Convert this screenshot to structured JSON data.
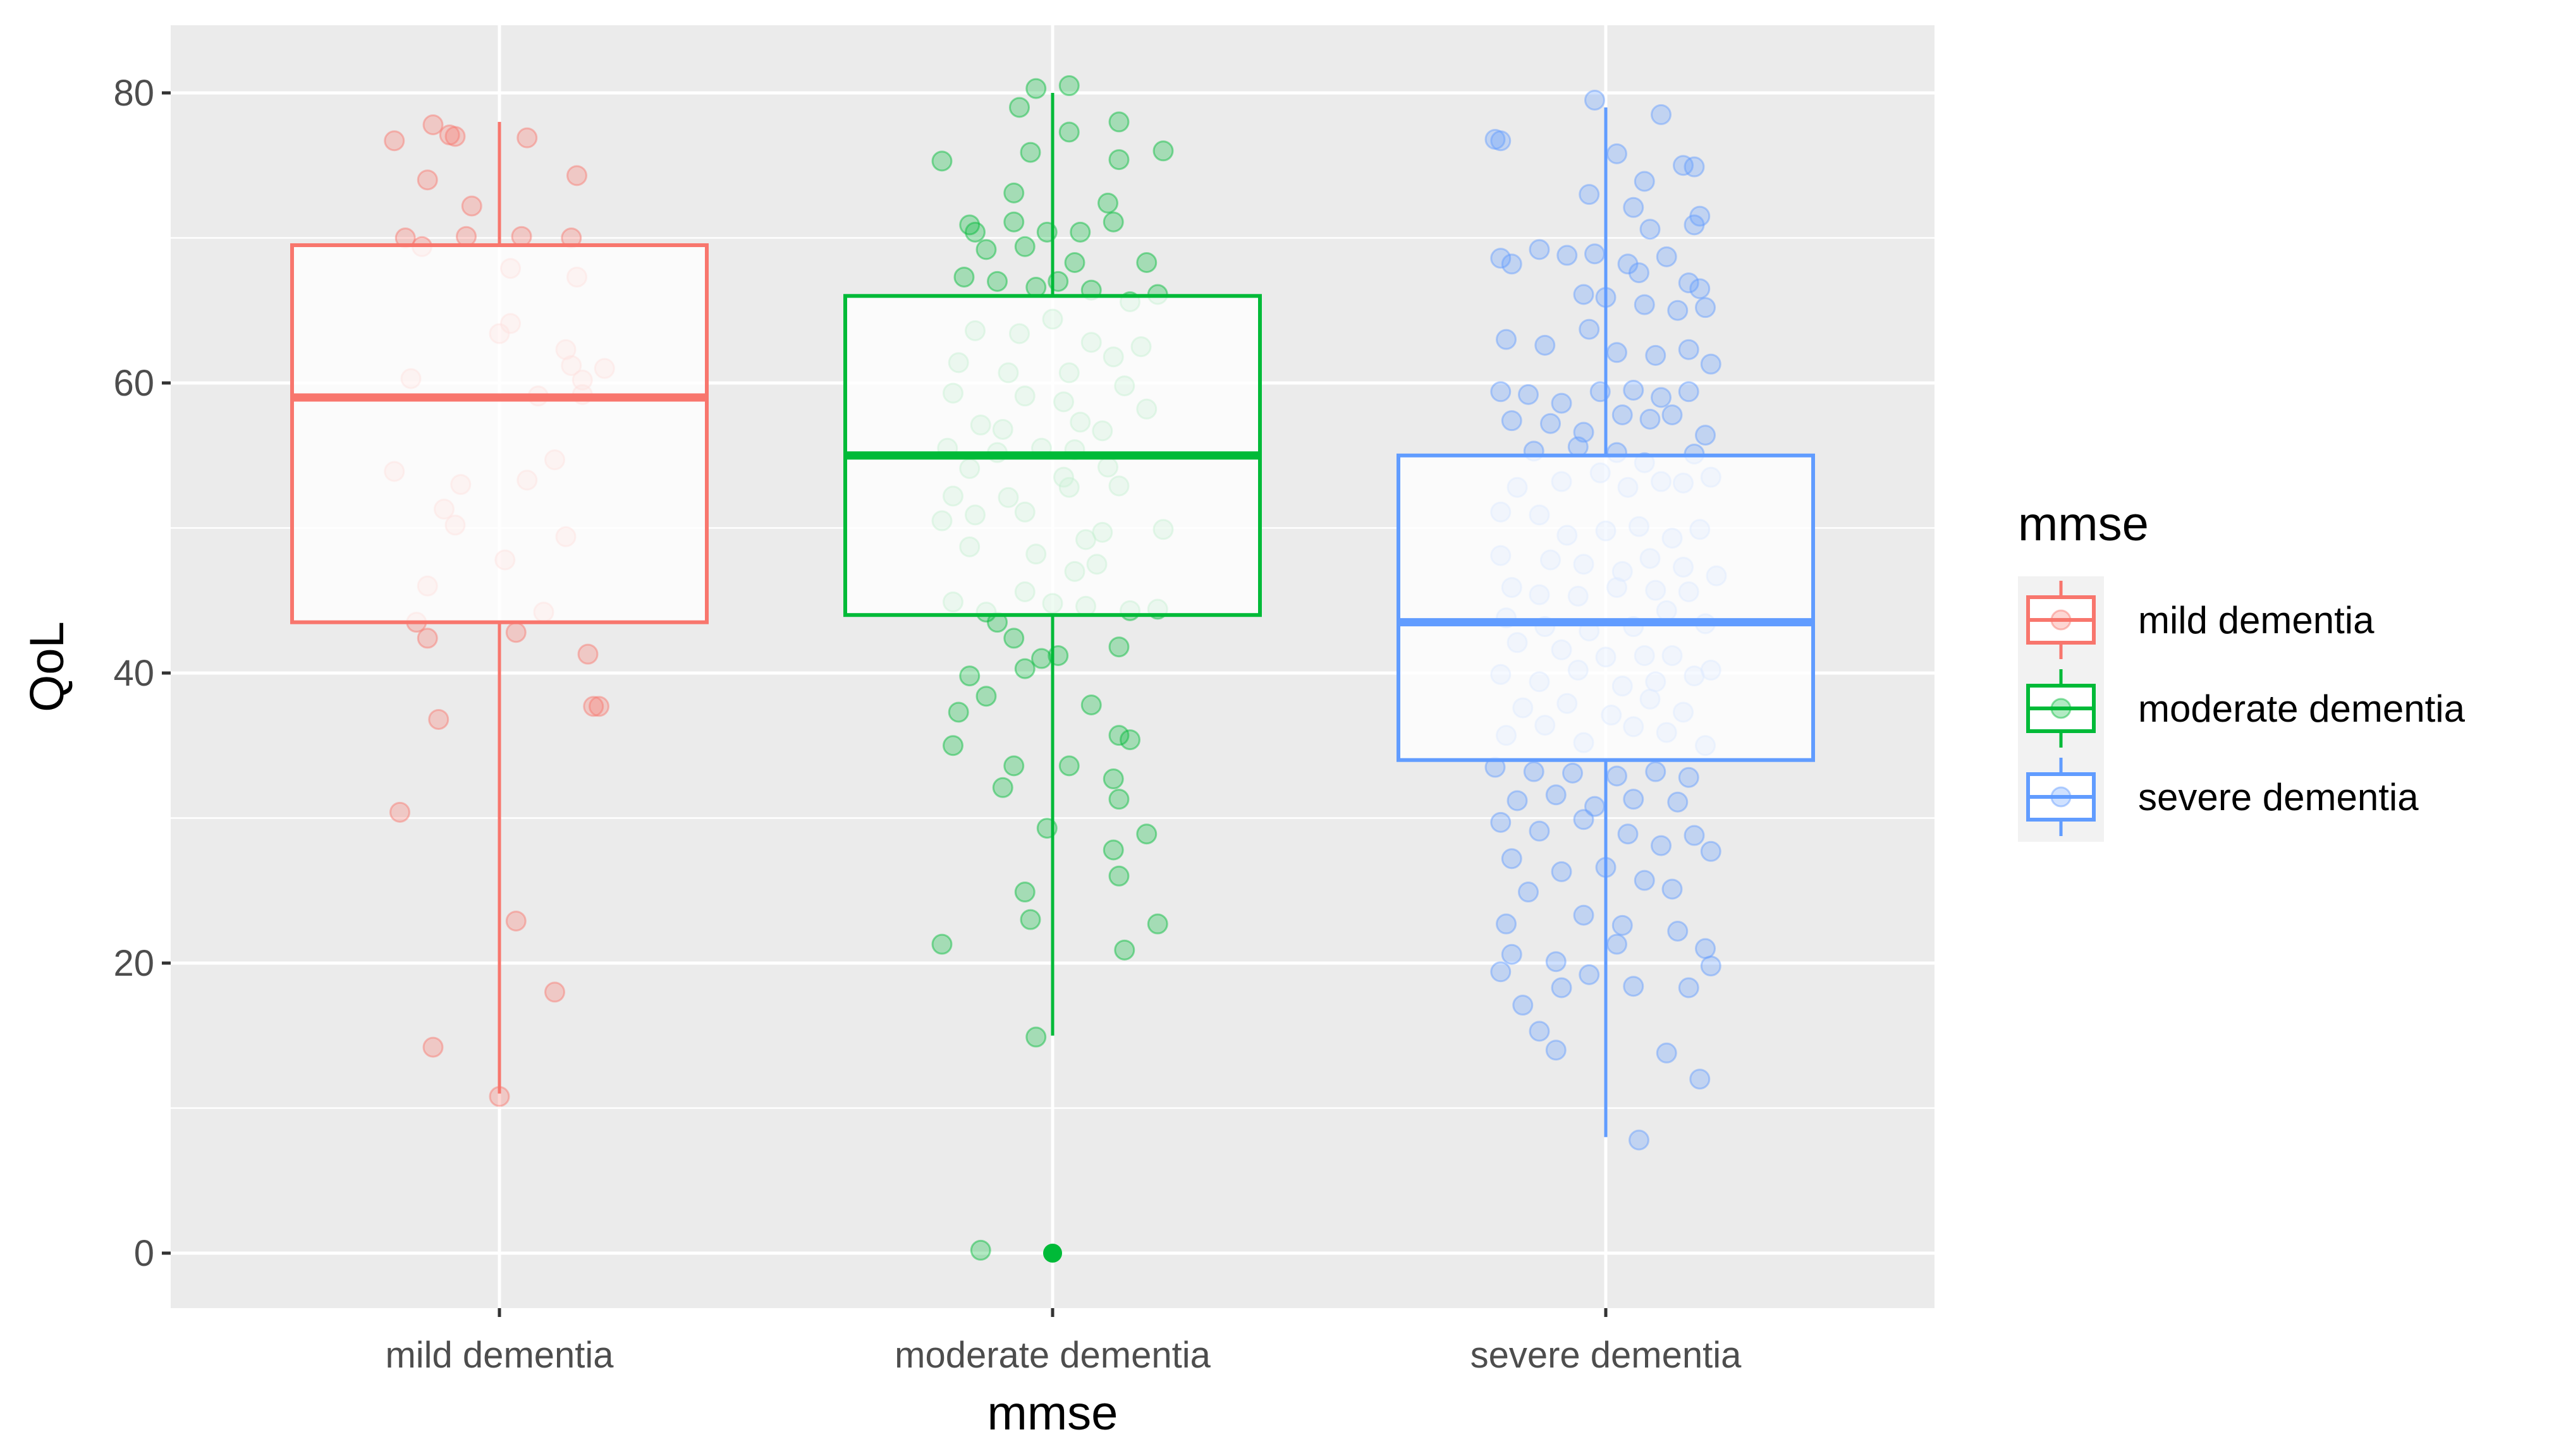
{
  "chart_data": {
    "type": "box",
    "xlabel": "mmse",
    "ylabel": "QoL",
    "ylim": [
      -4,
      84
    ],
    "yticks": [
      0,
      20,
      40,
      60,
      80
    ],
    "categories": [
      "mild dementia",
      "moderate dementia",
      "severe dementia"
    ],
    "colors": {
      "mild dementia": "#F8766D",
      "moderate dementia": "#00BA38",
      "severe dementia": "#619CFF"
    },
    "boxes": [
      {
        "group": "mild dementia",
        "whisker_low": 11,
        "q1": 43.5,
        "median": 59,
        "q3": 69.5,
        "whisker_high": 78,
        "outliers": []
      },
      {
        "group": "moderate dementia",
        "whisker_low": 15,
        "q1": 44,
        "median": 55,
        "q3": 66,
        "whisker_high": 80,
        "outliers": [
          0
        ]
      },
      {
        "group": "severe dementia",
        "whisker_low": 8,
        "q1": 34,
        "median": 43.5,
        "q3": 55,
        "whisker_high": 79,
        "outliers": []
      }
    ],
    "jitter_points": {
      "mild dementia": [
        [
          -0.19,
          76.7
        ],
        [
          -0.12,
          77.8
        ],
        [
          -0.09,
          77.1
        ],
        [
          -0.08,
          77
        ],
        [
          0.05,
          76.9
        ],
        [
          -0.13,
          74
        ],
        [
          0.14,
          74.3
        ],
        [
          -0.05,
          72.2
        ],
        [
          -0.17,
          70
        ],
        [
          -0.14,
          69.4
        ],
        [
          -0.06,
          70.1
        ],
        [
          0.04,
          70.1
        ],
        [
          0.13,
          70
        ],
        [
          0.02,
          67.9
        ],
        [
          0.14,
          67.3
        ],
        [
          0.02,
          64.1
        ],
        [
          0.0,
          63.4
        ],
        [
          0.12,
          62.3
        ],
        [
          0.13,
          61.2
        ],
        [
          0.19,
          61
        ],
        [
          0.15,
          60.2
        ],
        [
          -0.16,
          60.3
        ],
        [
          0.07,
          59.1
        ],
        [
          0.15,
          59.2
        ],
        [
          0.1,
          54.7
        ],
        [
          -0.19,
          53.9
        ],
        [
          -0.07,
          53
        ],
        [
          0.05,
          53.3
        ],
        [
          -0.1,
          51.3
        ],
        [
          -0.08,
          50.2
        ],
        [
          0.12,
          49.4
        ],
        [
          0.01,
          47.8
        ],
        [
          -0.13,
          46
        ],
        [
          -0.15,
          43.5
        ],
        [
          -0.13,
          42.4
        ],
        [
          0.03,
          42.8
        ],
        [
          0.08,
          44.2
        ],
        [
          0.16,
          41.3
        ],
        [
          0.17,
          37.7
        ],
        [
          0.18,
          37.7
        ],
        [
          -0.11,
          36.8
        ],
        [
          -0.18,
          30.4
        ],
        [
          0.03,
          22.9
        ],
        [
          0.1,
          18
        ],
        [
          -0.12,
          14.2
        ],
        [
          0.0,
          10.8
        ]
      ],
      "moderate dementia": [
        [
          -0.13,
          0.2
        ],
        [
          -0.03,
          80.3
        ],
        [
          0.03,
          80.5
        ],
        [
          -0.06,
          79
        ],
        [
          0.12,
          78
        ],
        [
          0.03,
          77.3
        ],
        [
          -0.04,
          75.9
        ],
        [
          0.2,
          76
        ],
        [
          0.12,
          75.4
        ],
        [
          -0.2,
          75.3
        ],
        [
          -0.07,
          73.1
        ],
        [
          0.1,
          72.4
        ],
        [
          -0.15,
          70.9
        ],
        [
          -0.14,
          70.4
        ],
        [
          -0.07,
          71.1
        ],
        [
          -0.01,
          70.4
        ],
        [
          0.05,
          70.4
        ],
        [
          0.11,
          71.1
        ],
        [
          -0.12,
          69.2
        ],
        [
          -0.05,
          69.4
        ],
        [
          0.04,
          68.3
        ],
        [
          0.17,
          68.3
        ],
        [
          -0.16,
          67.3
        ],
        [
          -0.1,
          67
        ],
        [
          -0.03,
          66.6
        ],
        [
          0.01,
          67
        ],
        [
          0.07,
          66.4
        ],
        [
          0.14,
          65.6
        ],
        [
          0.19,
          66.1
        ],
        [
          -0.14,
          63.6
        ],
        [
          -0.06,
          63.4
        ],
        [
          0.0,
          64.4
        ],
        [
          0.07,
          62.8
        ],
        [
          0.16,
          62.5
        ],
        [
          -0.17,
          61.4
        ],
        [
          -0.08,
          60.7
        ],
        [
          0.03,
          60.7
        ],
        [
          0.11,
          61.8
        ],
        [
          -0.18,
          59.3
        ],
        [
          -0.05,
          59.1
        ],
        [
          0.02,
          58.7
        ],
        [
          0.13,
          59.8
        ],
        [
          -0.13,
          57.1
        ],
        [
          -0.09,
          56.8
        ],
        [
          0.05,
          57.3
        ],
        [
          0.17,
          58.2
        ],
        [
          -0.19,
          55.5
        ],
        [
          -0.1,
          55.2
        ],
        [
          -0.02,
          55.5
        ],
        [
          0.04,
          55.4
        ],
        [
          0.09,
          56.7
        ],
        [
          -0.15,
          54.1
        ],
        [
          0.02,
          53.5
        ],
        [
          0.1,
          54.2
        ],
        [
          -0.18,
          52.2
        ],
        [
          -0.08,
          52.1
        ],
        [
          0.03,
          52.8
        ],
        [
          0.12,
          52.9
        ],
        [
          -0.2,
          50.5
        ],
        [
          -0.14,
          50.9
        ],
        [
          -0.05,
          51.1
        ],
        [
          0.06,
          49.2
        ],
        [
          0.09,
          49.7
        ],
        [
          0.2,
          49.9
        ],
        [
          -0.15,
          48.7
        ],
        [
          -0.03,
          48.2
        ],
        [
          0.04,
          47
        ],
        [
          0.08,
          47.5
        ],
        [
          -0.18,
          44.9
        ],
        [
          -0.12,
          44.2
        ],
        [
          -0.05,
          45.6
        ],
        [
          0.0,
          44.8
        ],
        [
          0.06,
          44.6
        ],
        [
          0.14,
          44.3
        ],
        [
          0.19,
          44.4
        ],
        [
          -0.1,
          43.5
        ],
        [
          -0.07,
          42.4
        ],
        [
          0.12,
          41.8
        ],
        [
          -0.02,
          41
        ],
        [
          0.01,
          41.2
        ],
        [
          -0.05,
          40.3
        ],
        [
          -0.15,
          39.8
        ],
        [
          -0.12,
          38.4
        ],
        [
          0.07,
          37.8
        ],
        [
          -0.17,
          37.3
        ],
        [
          0.14,
          35.4
        ],
        [
          0.12,
          35.7
        ],
        [
          -0.18,
          35
        ],
        [
          -0.07,
          33.6
        ],
        [
          0.03,
          33.6
        ],
        [
          0.11,
          32.7
        ],
        [
          -0.09,
          32.1
        ],
        [
          0.12,
          31.3
        ],
        [
          -0.01,
          29.3
        ],
        [
          0.17,
          28.9
        ],
        [
          0.11,
          27.8
        ],
        [
          0.12,
          26
        ],
        [
          -0.05,
          24.9
        ],
        [
          -0.04,
          23
        ],
        [
          0.19,
          22.7
        ],
        [
          -0.2,
          21.3
        ],
        [
          0.13,
          20.9
        ],
        [
          -0.03,
          14.9
        ]
      ],
      "severe dementia": [
        [
          -0.02,
          79.5
        ],
        [
          0.1,
          78.5
        ],
        [
          -0.2,
          76.8
        ],
        [
          -0.19,
          76.7
        ],
        [
          0.02,
          75.8
        ],
        [
          0.14,
          75
        ],
        [
          0.16,
          74.9
        ],
        [
          0.07,
          73.9
        ],
        [
          -0.03,
          73
        ],
        [
          0.05,
          72.1
        ],
        [
          0.17,
          71.5
        ],
        [
          0.16,
          70.9
        ],
        [
          0.08,
          70.6
        ],
        [
          -0.19,
          68.6
        ],
        [
          -0.12,
          69.2
        ],
        [
          -0.07,
          68.8
        ],
        [
          -0.02,
          68.9
        ],
        [
          0.04,
          68.2
        ],
        [
          0.11,
          68.7
        ],
        [
          -0.17,
          68.2
        ],
        [
          0.06,
          67.6
        ],
        [
          0.15,
          66.9
        ],
        [
          0.17,
          66.5
        ],
        [
          -0.04,
          66.1
        ],
        [
          0.0,
          65.9
        ],
        [
          0.07,
          65.4
        ],
        [
          0.13,
          65
        ],
        [
          0.18,
          65.2
        ],
        [
          -0.18,
          63
        ],
        [
          -0.11,
          62.6
        ],
        [
          -0.03,
          63.7
        ],
        [
          0.02,
          62.1
        ],
        [
          0.09,
          61.9
        ],
        [
          0.15,
          62.3
        ],
        [
          0.19,
          61.3
        ],
        [
          -0.19,
          59.4
        ],
        [
          -0.14,
          59.2
        ],
        [
          -0.08,
          58.6
        ],
        [
          -0.01,
          59.4
        ],
        [
          0.05,
          59.5
        ],
        [
          0.1,
          59
        ],
        [
          0.15,
          59.4
        ],
        [
          -0.17,
          57.4
        ],
        [
          -0.1,
          57.2
        ],
        [
          -0.04,
          56.6
        ],
        [
          0.03,
          57.8
        ],
        [
          0.08,
          57.5
        ],
        [
          0.12,
          57.8
        ],
        [
          0.18,
          56.4
        ],
        [
          -0.13,
          55.3
        ],
        [
          -0.05,
          55.6
        ],
        [
          0.02,
          55.2
        ],
        [
          0.07,
          54.5
        ],
        [
          0.16,
          55.1
        ],
        [
          0.19,
          53.5
        ],
        [
          -0.16,
          52.8
        ],
        [
          -0.08,
          53.2
        ],
        [
          -0.01,
          53.8
        ],
        [
          0.04,
          52.8
        ],
        [
          0.1,
          53.2
        ],
        [
          0.14,
          53.1
        ],
        [
          -0.19,
          51.1
        ],
        [
          -0.12,
          50.9
        ],
        [
          -0.07,
          49.5
        ],
        [
          0.0,
          49.8
        ],
        [
          0.06,
          50.1
        ],
        [
          0.12,
          49.3
        ],
        [
          0.17,
          49.9
        ],
        [
          -0.19,
          48.1
        ],
        [
          -0.1,
          47.8
        ],
        [
          -0.04,
          47.5
        ],
        [
          0.03,
          47
        ],
        [
          0.08,
          47.9
        ],
        [
          0.14,
          47.3
        ],
        [
          0.2,
          46.7
        ],
        [
          -0.17,
          45.9
        ],
        [
          -0.12,
          45.4
        ],
        [
          -0.05,
          45.3
        ],
        [
          0.02,
          45.9
        ],
        [
          0.09,
          45.7
        ],
        [
          0.15,
          45.6
        ],
        [
          -0.18,
          43.8
        ],
        [
          -0.11,
          43.2
        ],
        [
          -0.03,
          42.9
        ],
        [
          0.05,
          43.2
        ],
        [
          0.11,
          44.3
        ],
        [
          0.18,
          43.4
        ],
        [
          -0.16,
          42.1
        ],
        [
          -0.08,
          41.6
        ],
        [
          0.0,
          41.1
        ],
        [
          0.07,
          41.2
        ],
        [
          0.12,
          41.2
        ],
        [
          0.19,
          40.2
        ],
        [
          -0.19,
          39.9
        ],
        [
          -0.12,
          39.4
        ],
        [
          -0.05,
          40.2
        ],
        [
          0.03,
          39.1
        ],
        [
          0.09,
          39.4
        ],
        [
          0.16,
          39.8
        ],
        [
          -0.15,
          37.6
        ],
        [
          -0.07,
          37.9
        ],
        [
          0.01,
          37.1
        ],
        [
          0.08,
          38.2
        ],
        [
          0.14,
          37.3
        ],
        [
          -0.18,
          35.7
        ],
        [
          -0.11,
          36.4
        ],
        [
          -0.04,
          35.2
        ],
        [
          0.05,
          36.3
        ],
        [
          0.11,
          35.9
        ],
        [
          0.18,
          35
        ],
        [
          -0.2,
          33.5
        ],
        [
          -0.13,
          33.2
        ],
        [
          -0.06,
          33.1
        ],
        [
          0.02,
          32.9
        ],
        [
          0.09,
          33.2
        ],
        [
          0.15,
          32.8
        ],
        [
          -0.16,
          31.2
        ],
        [
          -0.09,
          31.6
        ],
        [
          -0.02,
          30.8
        ],
        [
          0.05,
          31.3
        ],
        [
          0.13,
          31.1
        ],
        [
          -0.19,
          29.7
        ],
        [
          -0.12,
          29.1
        ],
        [
          -0.04,
          29.9
        ],
        [
          0.04,
          28.9
        ],
        [
          0.1,
          28.1
        ],
        [
          0.16,
          28.8
        ],
        [
          0.19,
          27.7
        ],
        [
          -0.17,
          27.2
        ],
        [
          -0.08,
          26.3
        ],
        [
          0.0,
          26.6
        ],
        [
          0.07,
          25.7
        ],
        [
          0.12,
          25.1
        ],
        [
          -0.14,
          24.9
        ],
        [
          -0.04,
          23.3
        ],
        [
          0.03,
          22.6
        ],
        [
          0.13,
          22.2
        ],
        [
          -0.18,
          22.7
        ],
        [
          -0.17,
          20.6
        ],
        [
          -0.09,
          20.1
        ],
        [
          0.02,
          21.3
        ],
        [
          0.18,
          21
        ],
        [
          0.19,
          19.8
        ],
        [
          -0.19,
          19.4
        ],
        [
          -0.03,
          19.2
        ],
        [
          0.05,
          18.4
        ],
        [
          0.15,
          18.3
        ],
        [
          -0.08,
          18.3
        ],
        [
          -0.15,
          17.1
        ],
        [
          -0.12,
          15.3
        ],
        [
          -0.09,
          14
        ],
        [
          0.11,
          13.8
        ],
        [
          0.17,
          12
        ],
        [
          0.06,
          7.8
        ]
      ]
    }
  },
  "legend": {
    "title": "mmse",
    "items": [
      "mild dementia",
      "moderate dementia",
      "severe dementia"
    ]
  }
}
